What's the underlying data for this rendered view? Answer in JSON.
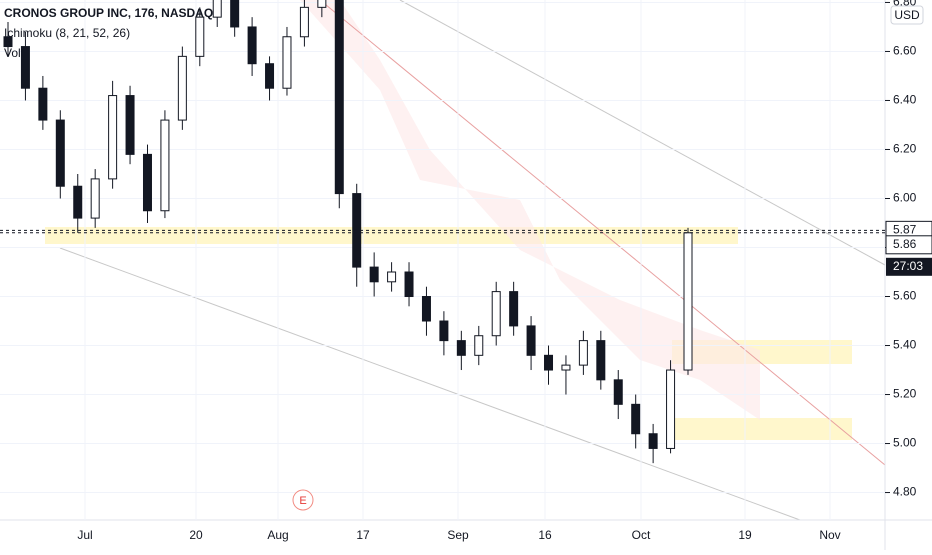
{
  "chart_data": {
    "type": "candlestick",
    "title": "CRONOS GROUP INC, 176, NASDAQ",
    "indicator": "Ichimoku (8, 21, 52, 26)",
    "volume_label": "Vol",
    "currency": "USD",
    "countdown": "27:03",
    "earnings_marker": "E",
    "xticks": [
      "Jul",
      "20",
      "Aug",
      "17",
      "Sep",
      "16",
      "Oct",
      "19",
      "Nov"
    ],
    "ylim": [
      4.79,
      6.81
    ],
    "yticks": [
      {
        "value": 4.8,
        "label": "4.80"
      },
      {
        "value": 5.0,
        "label": "5.00"
      },
      {
        "value": 5.2,
        "label": "5.20"
      },
      {
        "value": 5.4,
        "label": "5.40"
      },
      {
        "value": 5.6,
        "label": "5.60"
      },
      {
        "value": 5.8,
        "label": "5.80"
      },
      {
        "value": 6.0,
        "label": "6.00"
      },
      {
        "value": 6.2,
        "label": "6.20"
      },
      {
        "value": 6.4,
        "label": "6.40"
      },
      {
        "value": 6.6,
        "label": "6.60"
      },
      {
        "value": 6.8,
        "label": "6.80"
      }
    ],
    "price_labels": [
      5.87,
      5.86
    ],
    "open": [
      6.66,
      6.62,
      6.45,
      6.32,
      6.05,
      5.92,
      6.08,
      6.42,
      6.18,
      5.95,
      6.32,
      6.58,
      6.74,
      6.82,
      6.7,
      6.55,
      6.45,
      6.66,
      6.78,
      6.84,
      6.02,
      5.72,
      5.66,
      5.7,
      5.6,
      5.5,
      5.42,
      5.36,
      5.44,
      5.62,
      5.48,
      5.36,
      5.3,
      5.32,
      5.42,
      5.26,
      5.16,
      5.04,
      4.98,
      5.3
    ],
    "high": [
      6.72,
      6.68,
      6.5,
      6.36,
      6.1,
      6.12,
      6.48,
      6.46,
      6.22,
      6.36,
      6.62,
      6.78,
      6.86,
      6.86,
      6.74,
      6.58,
      6.7,
      6.82,
      6.86,
      6.88,
      6.06,
      5.78,
      5.74,
      5.74,
      5.64,
      5.54,
      5.46,
      5.48,
      5.66,
      5.66,
      5.52,
      5.4,
      5.36,
      5.46,
      5.46,
      5.3,
      5.2,
      5.08,
      5.34,
      5.88
    ],
    "low": [
      6.58,
      6.4,
      6.28,
      6.0,
      5.86,
      5.88,
      6.04,
      6.14,
      5.9,
      5.92,
      6.28,
      6.54,
      6.7,
      6.66,
      6.5,
      6.4,
      6.42,
      6.62,
      6.74,
      5.96,
      5.64,
      5.6,
      5.62,
      5.56,
      5.44,
      5.36,
      5.3,
      5.32,
      5.4,
      5.44,
      5.3,
      5.24,
      5.2,
      5.28,
      5.22,
      5.1,
      4.98,
      4.92,
      4.96,
      5.28
    ],
    "close": [
      6.62,
      6.45,
      6.32,
      6.05,
      5.92,
      6.08,
      6.42,
      6.18,
      5.95,
      6.32,
      6.58,
      6.74,
      6.82,
      6.7,
      6.55,
      6.45,
      6.66,
      6.78,
      6.84,
      6.02,
      5.72,
      5.66,
      5.7,
      5.6,
      5.5,
      5.42,
      5.36,
      5.44,
      5.62,
      5.48,
      5.36,
      5.3,
      5.32,
      5.42,
      5.26,
      5.16,
      5.04,
      4.98,
      5.3,
      5.86
    ],
    "color": "#131722"
  }
}
